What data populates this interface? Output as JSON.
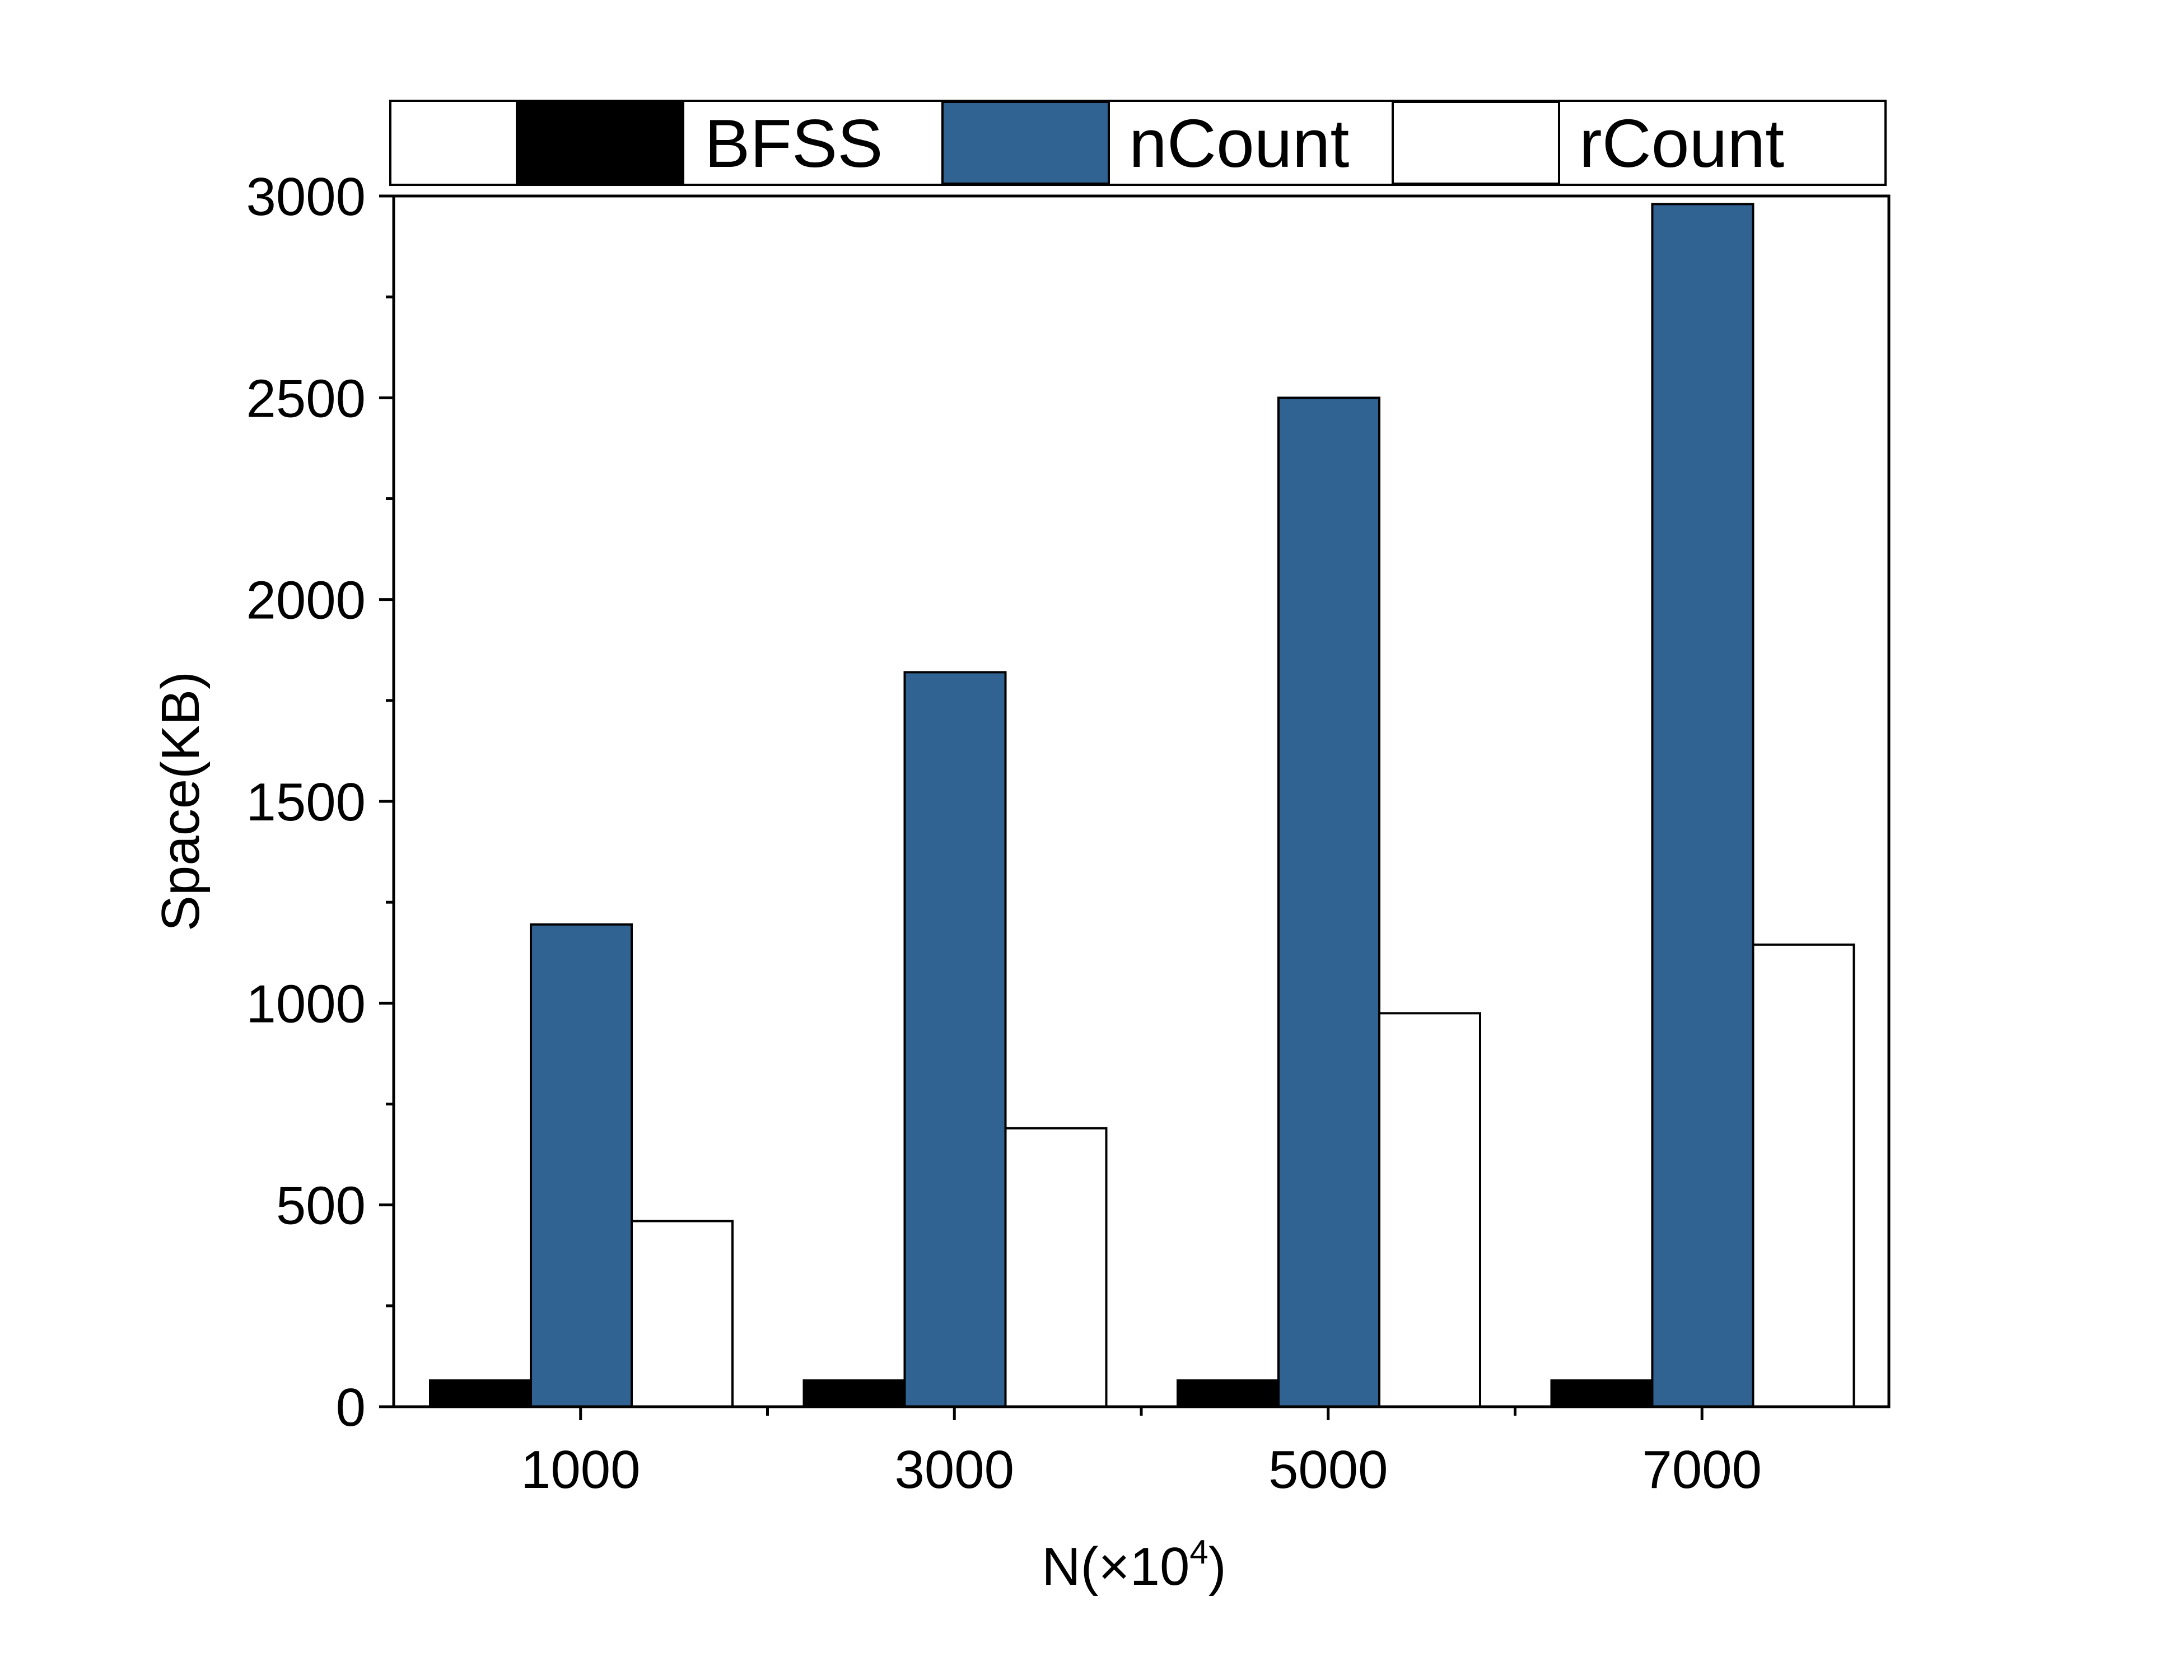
{
  "chart_data": {
    "type": "bar",
    "categories": [
      "1000",
      "3000",
      "5000",
      "7000"
    ],
    "series": [
      {
        "name": "BFSS",
        "values": [
          65,
          65,
          65,
          65
        ],
        "color": "#000000"
      },
      {
        "name": "nCount",
        "values": [
          1195,
          1820,
          2500,
          2980
        ],
        "color": "#316392"
      },
      {
        "name": "rCount",
        "values": [
          460,
          690,
          975,
          1145
        ],
        "color": "#ffffff"
      }
    ],
    "xlabel": {
      "base": "N(×10",
      "sup": "4",
      "close": ")"
    },
    "ylabel": "Space(KB)",
    "ylim": [
      0,
      3000
    ],
    "yticks": [
      "0",
      "500",
      "1000",
      "1500",
      "2000",
      "2500",
      "3000"
    ],
    "legend_position": "top",
    "grid": false
  }
}
